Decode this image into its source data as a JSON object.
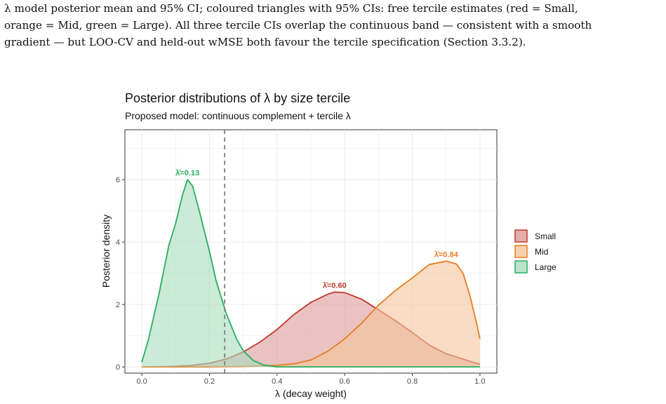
{
  "caption": {
    "lines": [
      "λ model posterior mean and 95% CI; coloured triangles with 95% CIs: free tercile estimates (red = Small,",
      "orange = Mid, green = Large). All three tercile CIs overlap the continuous band — consistent with a smooth",
      "gradient — but LOO-CV and held-out wMSE both favour the tercile specification (Section 3.3.2)."
    ]
  },
  "chart_data": {
    "type": "area",
    "title": "Posterior distributions of λ by size tercile",
    "subtitle": "Proposed model: continuous complement + tercile λ",
    "xlabel": "λ  (decay weight)",
    "ylabel": "Posterior density",
    "xlim": [
      -0.05,
      1.05
    ],
    "ylim": [
      -0.2,
      7.6
    ],
    "xticks": [
      0.0,
      0.2,
      0.4,
      0.6,
      0.8,
      1.0
    ],
    "xtick_labels": [
      "0.0",
      "0.2",
      "0.4",
      "0.6",
      "0.8",
      "1.0"
    ],
    "yticks": [
      0,
      2,
      4,
      6
    ],
    "ytick_labels": [
      "0",
      "2",
      "4",
      "6"
    ],
    "grid": true,
    "legend_position": "right",
    "reference_line": {
      "x": 0.245,
      "style": "dashed",
      "color": "#7f7f7f"
    },
    "series": [
      {
        "name": "Small",
        "color": "#c0392b",
        "fill": "#dc9a97",
        "mode_label": "λ̄=0.60",
        "mode": {
          "x": 0.57,
          "y": 2.4
        },
        "points": [
          [
            0.0,
            0.0
          ],
          [
            0.05,
            0.005
          ],
          [
            0.1,
            0.02
          ],
          [
            0.15,
            0.05
          ],
          [
            0.2,
            0.12
          ],
          [
            0.25,
            0.25
          ],
          [
            0.3,
            0.48
          ],
          [
            0.35,
            0.8
          ],
          [
            0.4,
            1.2
          ],
          [
            0.45,
            1.68
          ],
          [
            0.5,
            2.07
          ],
          [
            0.55,
            2.33
          ],
          [
            0.57,
            2.4
          ],
          [
            0.6,
            2.38
          ],
          [
            0.65,
            2.17
          ],
          [
            0.7,
            1.83
          ],
          [
            0.75,
            1.48
          ],
          [
            0.8,
            1.1
          ],
          [
            0.85,
            0.7
          ],
          [
            0.9,
            0.42
          ],
          [
            0.95,
            0.25
          ],
          [
            1.0,
            0.08
          ]
        ]
      },
      {
        "name": "Mid",
        "color": "#e67e22",
        "fill": "#f5c59b",
        "mode_label": "λ̄=0.84",
        "mode": {
          "x": 0.9,
          "y": 3.39
        },
        "points": [
          [
            0.0,
            0.0
          ],
          [
            0.1,
            0.0
          ],
          [
            0.2,
            0.0
          ],
          [
            0.3,
            0.01
          ],
          [
            0.4,
            0.05
          ],
          [
            0.45,
            0.1
          ],
          [
            0.5,
            0.22
          ],
          [
            0.55,
            0.5
          ],
          [
            0.6,
            0.9
          ],
          [
            0.65,
            1.4
          ],
          [
            0.7,
            1.98
          ],
          [
            0.75,
            2.45
          ],
          [
            0.8,
            2.85
          ],
          [
            0.85,
            3.28
          ],
          [
            0.9,
            3.39
          ],
          [
            0.93,
            3.3
          ],
          [
            0.95,
            3.0
          ],
          [
            0.97,
            2.3
          ],
          [
            0.99,
            1.4
          ],
          [
            1.0,
            0.9
          ]
        ]
      },
      {
        "name": "Large",
        "color": "#27ae60",
        "fill": "#a9dcbd",
        "mode_label": "λ̄=0.13",
        "mode": {
          "x": 0.135,
          "y": 6.0
        },
        "points": [
          [
            0.0,
            0.15
          ],
          [
            0.02,
            0.9
          ],
          [
            0.05,
            2.3
          ],
          [
            0.08,
            3.9
          ],
          [
            0.1,
            4.6
          ],
          [
            0.12,
            5.5
          ],
          [
            0.135,
            6.0
          ],
          [
            0.15,
            5.8
          ],
          [
            0.17,
            5.0
          ],
          [
            0.2,
            3.7
          ],
          [
            0.22,
            2.75
          ],
          [
            0.25,
            1.7
          ],
          [
            0.28,
            0.9
          ],
          [
            0.3,
            0.52
          ],
          [
            0.33,
            0.2
          ],
          [
            0.36,
            0.06
          ],
          [
            0.4,
            0.0
          ],
          [
            0.5,
            0.0
          ],
          [
            0.6,
            0.0
          ],
          [
            0.7,
            0.0
          ],
          [
            0.8,
            0.0
          ],
          [
            0.9,
            0.0
          ],
          [
            1.0,
            0.0
          ]
        ]
      }
    ]
  }
}
